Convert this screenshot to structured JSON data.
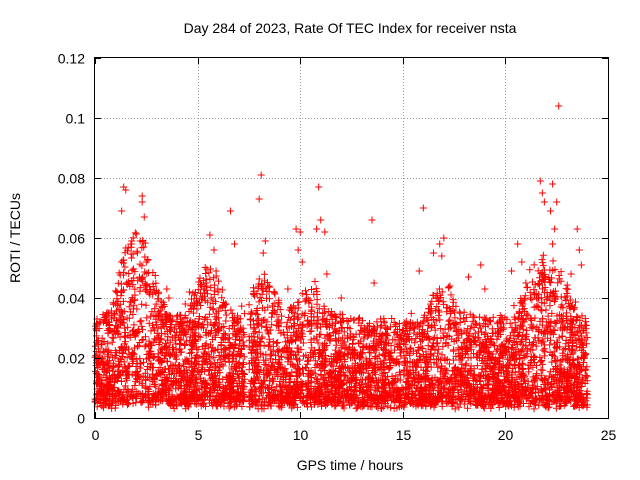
{
  "chart_data": {
    "type": "scatter",
    "title": "Day 284 of 2023, Rate Of TEC Index for receiver nsta",
    "xlabel": "GPS time / hours",
    "ylabel": "ROTI / TECUs",
    "xlim": [
      0,
      25
    ],
    "ylim": [
      0,
      0.12
    ],
    "xticks": [
      0,
      5,
      10,
      15,
      20,
      25
    ],
    "yticks": [
      0,
      0.02,
      0.04,
      0.06,
      0.08,
      0.1,
      0.12
    ],
    "xtick_labels": [
      "0",
      "5",
      "10",
      "15",
      "20",
      "25"
    ],
    "ytick_labels": [
      "0",
      "0.02",
      "0.04",
      "0.06",
      "0.08",
      "0.1",
      "0.12"
    ],
    "grid": true,
    "marker": "+",
    "color": "#ff0000",
    "data_gap_hours": [
      7.3,
      7.5
    ],
    "series": [
      {
        "name": "ROTI",
        "description": "dense band mostly 0.005–0.03 with spikes",
        "x": [
          1.4,
          1.5,
          1.3,
          2.3,
          2.3,
          2.4,
          2.2,
          2.5,
          3.6,
          3.5,
          4.4,
          4.6,
          5.2,
          5.4,
          5.6,
          5.8,
          5.9,
          6.0,
          6.6,
          6.8,
          8.1,
          8.0,
          8.3,
          8.2,
          9.4,
          9.8,
          9.9,
          10.0,
          10.1,
          10.9,
          10.8,
          11.0,
          11.2,
          11.3,
          12.0,
          13.5,
          13.6,
          15.8,
          16.0,
          16.5,
          16.8,
          16.9,
          17.0,
          17.3,
          18.2,
          18.8,
          19.0,
          20.3,
          20.6,
          20.8,
          21.0,
          21.7,
          21.8,
          21.9,
          22.2,
          22.3,
          22.4,
          22.5,
          22.6,
          22.3,
          23.2,
          23.5,
          23.6,
          23.7
        ],
        "y": [
          0.077,
          0.076,
          0.069,
          0.074,
          0.072,
          0.067,
          0.059,
          0.052,
          0.04,
          0.043,
          0.038,
          0.042,
          0.044,
          0.045,
          0.061,
          0.056,
          0.049,
          0.042,
          0.069,
          0.058,
          0.081,
          0.073,
          0.059,
          0.055,
          0.043,
          0.063,
          0.056,
          0.062,
          0.052,
          0.077,
          0.063,
          0.066,
          0.062,
          0.048,
          0.04,
          0.066,
          0.045,
          0.049,
          0.07,
          0.055,
          0.058,
          0.054,
          0.06,
          0.044,
          0.047,
          0.051,
          0.043,
          0.049,
          0.058,
          0.052,
          0.045,
          0.079,
          0.075,
          0.072,
          0.069,
          0.078,
          0.063,
          0.072,
          0.104,
          0.058,
          0.048,
          0.063,
          0.056,
          0.051
        ]
      }
    ]
  }
}
